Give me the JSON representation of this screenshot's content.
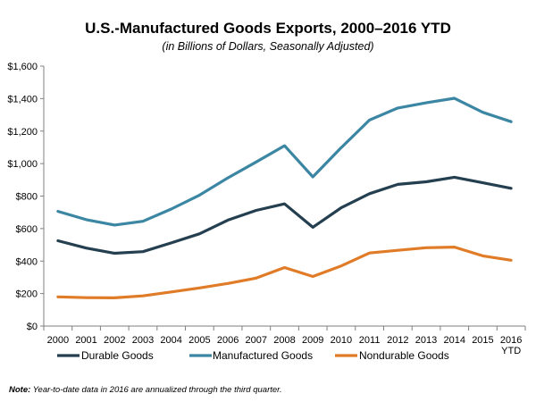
{
  "chart_data": {
    "type": "line",
    "title": "U.S.-Manufactured Goods Exports, 2000–2016 YTD",
    "subtitle": "(in Billions of Dollars, Seasonally Adjusted)",
    "xlabel": "",
    "ylabel": "",
    "categories": [
      "2000",
      "2001",
      "2002",
      "2003",
      "2004",
      "2005",
      "2006",
      "2007",
      "2008",
      "2009",
      "2010",
      "2011",
      "2012",
      "2013",
      "2014",
      "2015",
      "2016"
    ],
    "category_sublabels": {
      "2016": "YTD"
    },
    "ylim": [
      0,
      1600
    ],
    "yticks": [
      0,
      200,
      400,
      600,
      800,
      1000,
      1200,
      1400,
      1600
    ],
    "ytick_labels": [
      "$0",
      "$200",
      "$400",
      "$600",
      "$800",
      "$1,000",
      "$1,200",
      "$1,400",
      "$1,600"
    ],
    "grid": false,
    "legend_position": "bottom",
    "series": [
      {
        "name": "Durable Goods",
        "color": "#243f50",
        "values": [
          525,
          480,
          448,
          458,
          512,
          568,
          652,
          712,
          752,
          608,
          728,
          815,
          872,
          888,
          916,
          882,
          848
        ]
      },
      {
        "name": "Manufactured Goods",
        "color": "#3b86a3",
        "values": [
          706,
          655,
          622,
          645,
          720,
          806,
          912,
          1010,
          1110,
          918,
          1098,
          1268,
          1342,
          1374,
          1402,
          1316,
          1258
        ]
      },
      {
        "name": "Nondurable Goods",
        "color": "#e07c28",
        "values": [
          180,
          175,
          174,
          186,
          210,
          235,
          262,
          295,
          360,
          305,
          370,
          450,
          466,
          482,
          486,
          432,
          405
        ]
      }
    ]
  },
  "note": {
    "label": "Note:",
    "text": " Year-to-date data in 2016 are annualized through the third quarter."
  }
}
